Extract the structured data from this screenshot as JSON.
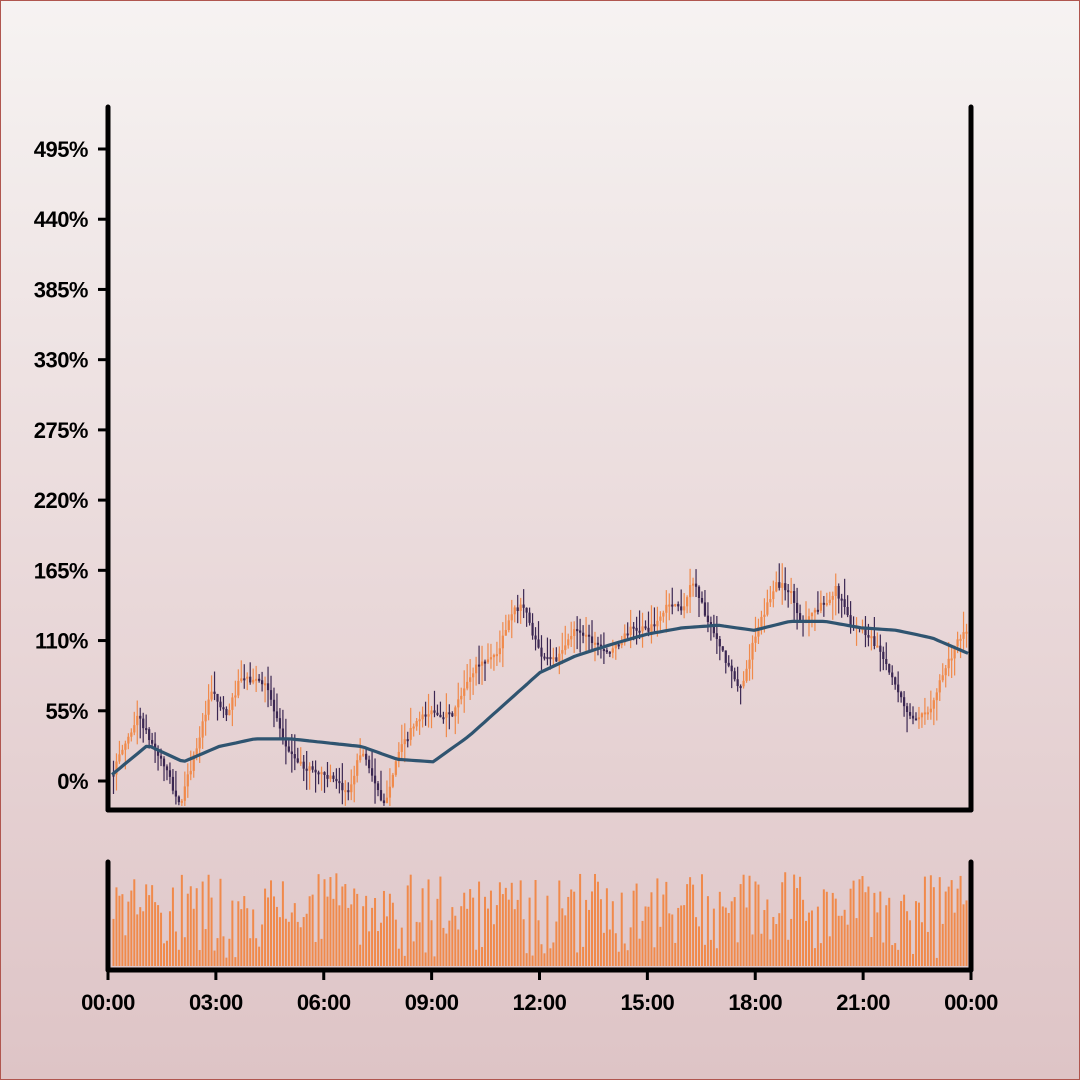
{
  "chart_data": {
    "type": "candlestick",
    "title": "",
    "xlabel": "",
    "ylabel": "",
    "y_unit": "%",
    "ylim": [
      -22,
      530
    ],
    "y_ticks": [
      "0%",
      "55%",
      "110%",
      "165%",
      "220%",
      "275%",
      "330%",
      "385%",
      "440%",
      "495%"
    ],
    "y_tick_values": [
      0,
      55,
      110,
      165,
      220,
      275,
      330,
      385,
      440,
      495
    ],
    "x_ticks": [
      "00:00",
      "03:00",
      "06:00",
      "09:00",
      "12:00",
      "15:00",
      "18:00",
      "21:00",
      "00:00"
    ],
    "x_range_hours": [
      0,
      24
    ],
    "grid": false,
    "legend": "none",
    "price_anchor_points": [
      {
        "t": 0.0,
        "v": 5
      },
      {
        "t": 0.3,
        "v": 25
      },
      {
        "t": 0.75,
        "v": 52
      },
      {
        "t": 1.0,
        "v": 35
      },
      {
        "t": 1.5,
        "v": 10
      },
      {
        "t": 1.9,
        "v": -20
      },
      {
        "t": 2.3,
        "v": 20
      },
      {
        "t": 2.8,
        "v": 70
      },
      {
        "t": 3.2,
        "v": 50
      },
      {
        "t": 3.6,
        "v": 80
      },
      {
        "t": 4.3,
        "v": 78
      },
      {
        "t": 4.8,
        "v": 30
      },
      {
        "t": 5.3,
        "v": 12
      },
      {
        "t": 6.0,
        "v": 5
      },
      {
        "t": 6.6,
        "v": -10
      },
      {
        "t": 7.0,
        "v": 25
      },
      {
        "t": 7.3,
        "v": 5
      },
      {
        "t": 7.6,
        "v": -22
      },
      {
        "t": 8.0,
        "v": 20
      },
      {
        "t": 8.5,
        "v": 45
      },
      {
        "t": 9.0,
        "v": 55
      },
      {
        "t": 9.5,
        "v": 50
      },
      {
        "t": 10.2,
        "v": 90
      },
      {
        "t": 10.8,
        "v": 100
      },
      {
        "t": 11.2,
        "v": 130
      },
      {
        "t": 11.5,
        "v": 140
      },
      {
        "t": 12.0,
        "v": 100
      },
      {
        "t": 12.5,
        "v": 95
      },
      {
        "t": 13.0,
        "v": 120
      },
      {
        "t": 13.5,
        "v": 110
      },
      {
        "t": 14.0,
        "v": 100
      },
      {
        "t": 14.5,
        "v": 118
      },
      {
        "t": 15.2,
        "v": 120
      },
      {
        "t": 15.6,
        "v": 140
      },
      {
        "t": 16.0,
        "v": 135
      },
      {
        "t": 16.3,
        "v": 158
      },
      {
        "t": 16.7,
        "v": 125
      },
      {
        "t": 17.2,
        "v": 95
      },
      {
        "t": 17.6,
        "v": 70
      },
      {
        "t": 18.0,
        "v": 110
      },
      {
        "t": 18.6,
        "v": 155
      },
      {
        "t": 19.0,
        "v": 150
      },
      {
        "t": 19.3,
        "v": 125
      },
      {
        "t": 19.8,
        "v": 135
      },
      {
        "t": 20.3,
        "v": 150
      },
      {
        "t": 20.7,
        "v": 125
      },
      {
        "t": 21.2,
        "v": 115
      },
      {
        "t": 21.6,
        "v": 100
      },
      {
        "t": 22.0,
        "v": 70
      },
      {
        "t": 22.5,
        "v": 45
      },
      {
        "t": 22.9,
        "v": 55
      },
      {
        "t": 23.3,
        "v": 85
      },
      {
        "t": 23.7,
        "v": 108
      },
      {
        "t": 24.0,
        "v": 118
      }
    ],
    "moving_average_points": [
      {
        "t": 0.0,
        "v": 5
      },
      {
        "t": 1.0,
        "v": 28
      },
      {
        "t": 2.0,
        "v": 15
      },
      {
        "t": 3.0,
        "v": 27
      },
      {
        "t": 4.0,
        "v": 33
      },
      {
        "t": 5.0,
        "v": 33
      },
      {
        "t": 6.0,
        "v": 30
      },
      {
        "t": 7.0,
        "v": 27
      },
      {
        "t": 8.0,
        "v": 17
      },
      {
        "t": 9.0,
        "v": 15
      },
      {
        "t": 10.0,
        "v": 35
      },
      {
        "t": 11.0,
        "v": 60
      },
      {
        "t": 12.0,
        "v": 85
      },
      {
        "t": 13.0,
        "v": 98
      },
      {
        "t": 14.0,
        "v": 107
      },
      {
        "t": 15.0,
        "v": 115
      },
      {
        "t": 16.0,
        "v": 120
      },
      {
        "t": 17.0,
        "v": 122
      },
      {
        "t": 18.0,
        "v": 118
      },
      {
        "t": 19.0,
        "v": 125
      },
      {
        "t": 20.0,
        "v": 125
      },
      {
        "t": 21.0,
        "v": 120
      },
      {
        "t": 22.0,
        "v": 118
      },
      {
        "t": 23.0,
        "v": 112
      },
      {
        "t": 24.0,
        "v": 100
      }
    ],
    "volume_range": [
      0,
      1
    ],
    "colors": {
      "up": "#f08a4b",
      "down": "#3b2752",
      "moving_average": "#2f5470",
      "volume": "#f08a4b",
      "axis": "#000000"
    }
  }
}
